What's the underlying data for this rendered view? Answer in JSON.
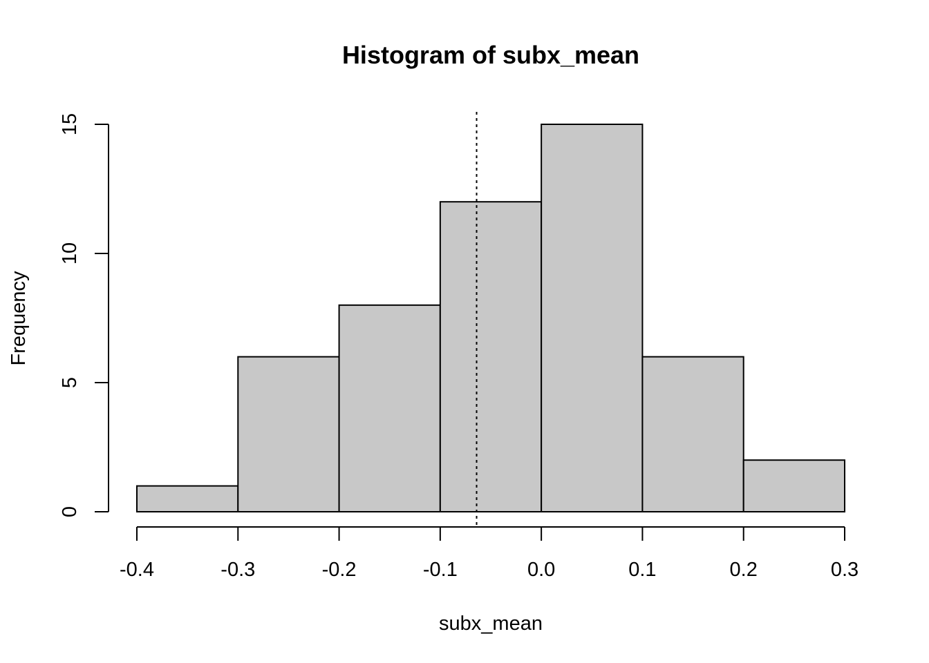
{
  "chart_data": {
    "type": "bar",
    "subtype": "histogram",
    "title": "Histogram of subx_mean",
    "xlabel": "subx_mean",
    "ylabel": "Frequency",
    "bins": [
      {
        "from": -0.4,
        "to": -0.3,
        "count": 1
      },
      {
        "from": -0.3,
        "to": -0.2,
        "count": 6
      },
      {
        "from": -0.2,
        "to": -0.1,
        "count": 8
      },
      {
        "from": -0.1,
        "to": 0.0,
        "count": 12
      },
      {
        "from": 0.0,
        "to": 0.1,
        "count": 15
      },
      {
        "from": 0.1,
        "to": 0.2,
        "count": 6
      },
      {
        "from": 0.2,
        "to": 0.3,
        "count": 2
      }
    ],
    "xlim": [
      -0.4,
      0.3
    ],
    "ylim": [
      0,
      15
    ],
    "x_ticks": [
      {
        "value": -0.4,
        "label": "-0.4"
      },
      {
        "value": -0.3,
        "label": "-0.3"
      },
      {
        "value": -0.2,
        "label": "-0.2"
      },
      {
        "value": -0.1,
        "label": "-0.1"
      },
      {
        "value": 0.0,
        "label": "0.0"
      },
      {
        "value": 0.1,
        "label": "0.1"
      },
      {
        "value": 0.2,
        "label": "0.2"
      },
      {
        "value": 0.3,
        "label": "0.3"
      }
    ],
    "y_ticks": [
      {
        "value": 0,
        "label": "0"
      },
      {
        "value": 5,
        "label": "5"
      },
      {
        "value": 10,
        "label": "10"
      },
      {
        "value": 15,
        "label": "15"
      }
    ],
    "reference_line": {
      "x": -0.064,
      "style": "dotted"
    },
    "bar_color": "#c8c8c8",
    "grid": false
  }
}
